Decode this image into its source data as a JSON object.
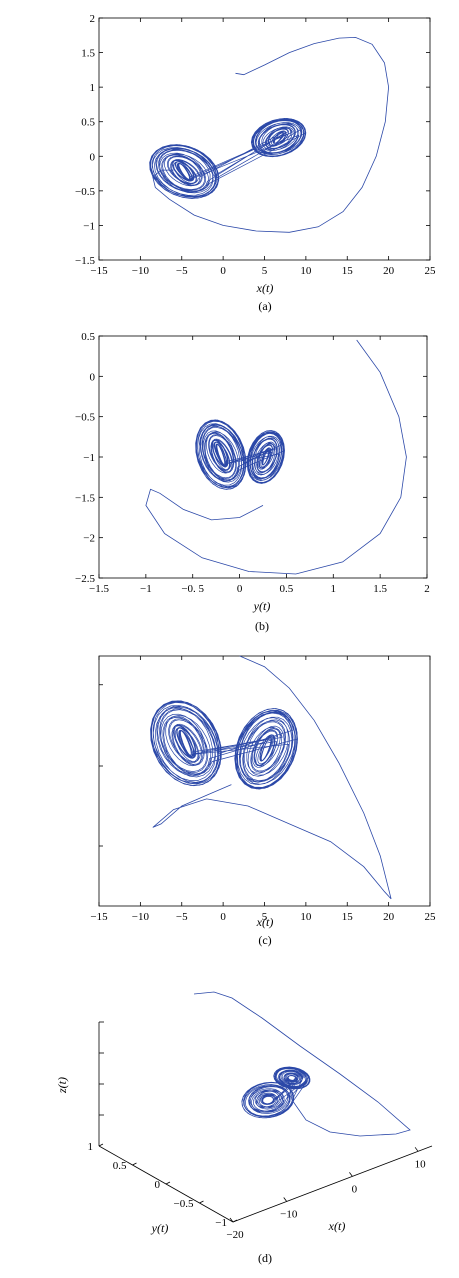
{
  "chart_data": [
    {
      "type": "line",
      "panel": "a",
      "caption": "(a)",
      "xlabel": "x(t)",
      "ylabel": "",
      "xlim": [
        -15,
        25
      ],
      "ylim": [
        -1.5,
        2
      ],
      "xticks": [
        -15,
        -10,
        -5,
        0,
        5,
        10,
        15,
        20,
        25
      ],
      "xtick_labels": [
        "−15",
        "−10",
        "−5",
        "0",
        "5",
        "10",
        "15",
        "20",
        "25"
      ],
      "yticks": [
        -1.5,
        -1,
        -0.5,
        0,
        0.5,
        1,
        1.5,
        2
      ],
      "ytick_labels": [
        "−1.5",
        "−1",
        "−0.5",
        "0",
        "0.5",
        "1",
        "1.5",
        "2"
      ],
      "grid": false,
      "color": "#2b48a8",
      "transient": [
        [
          1.5,
          1.2
        ],
        [
          2.5,
          1.18
        ],
        [
          5,
          1.32
        ],
        [
          8,
          1.5
        ],
        [
          11,
          1.63
        ],
        [
          14,
          1.71
        ],
        [
          16,
          1.72
        ],
        [
          18,
          1.62
        ],
        [
          19.5,
          1.35
        ],
        [
          20,
          1.0
        ],
        [
          19.6,
          0.5
        ],
        [
          18.5,
          0.0
        ],
        [
          16.8,
          -0.45
        ],
        [
          14.5,
          -0.8
        ],
        [
          11.5,
          -1.02
        ],
        [
          8,
          -1.1
        ],
        [
          4,
          -1.08
        ],
        [
          0,
          -1.0
        ],
        [
          -3.5,
          -0.85
        ],
        [
          -6.5,
          -0.62
        ],
        [
          -8.2,
          -0.45
        ],
        [
          -8.5,
          -0.3
        ],
        [
          -7.5,
          -0.2
        ],
        [
          -6,
          -0.2
        ]
      ],
      "attractor": {
        "type": "double-scroll",
        "left_center": [
          -4.7,
          -0.22
        ],
        "right_center": [
          6.7,
          0.27
        ],
        "left_radius": [
          4.2,
          0.38
        ],
        "right_radius": [
          3.3,
          0.27
        ],
        "tilt_deg": 0
      }
    },
    {
      "type": "line",
      "panel": "b",
      "caption": "(b)",
      "xlabel": "y(t)",
      "ylabel": "",
      "xlim": [
        -1.5,
        2
      ],
      "ylim": [
        -2.5,
        0.5
      ],
      "xticks": [
        -1.5,
        -1,
        -0.5,
        0,
        0.5,
        1,
        1.5,
        2
      ],
      "xtick_labels": [
        "−1.5",
        "−1",
        "−0. 5",
        "0",
        "0.5",
        "1",
        "1.5",
        "2"
      ],
      "yticks": [
        -2.5,
        -2,
        -1.5,
        -1,
        -0.5,
        0,
        0.5
      ],
      "ytick_labels": [
        "−2.5",
        "−2",
        "−1.5",
        "−1",
        "−0.5",
        "0",
        "0.5"
      ],
      "grid": false,
      "color": "#2b48a8",
      "transient": [
        [
          1.25,
          0.45
        ],
        [
          1.5,
          0.05
        ],
        [
          1.7,
          -0.5
        ],
        [
          1.78,
          -1.0
        ],
        [
          1.72,
          -1.5
        ],
        [
          1.5,
          -1.95
        ],
        [
          1.1,
          -2.3
        ],
        [
          0.6,
          -2.45
        ],
        [
          0.1,
          -2.42
        ],
        [
          -0.4,
          -2.25
        ],
        [
          -0.8,
          -1.95
        ],
        [
          -1.0,
          -1.6
        ],
        [
          -0.95,
          -1.4
        ],
        [
          -0.85,
          -1.45
        ],
        [
          -0.6,
          -1.65
        ],
        [
          -0.3,
          -1.78
        ],
        [
          0.0,
          -1.75
        ],
        [
          0.25,
          -1.6
        ]
      ],
      "attractor": {
        "type": "double-scroll",
        "left_center": [
          -0.2,
          -0.97
        ],
        "right_center": [
          0.28,
          -1.0
        ],
        "left_radius": [
          0.27,
          0.42
        ],
        "right_radius": [
          0.2,
          0.32
        ],
        "tilt_deg": 0
      }
    },
    {
      "type": "line",
      "panel": "c",
      "caption": "(c)",
      "xlabel": "x(t)",
      "ylabel": "",
      "xlim": [
        -15,
        25
      ],
      "ylim": [
        -1.5,
        2
      ],
      "xticks": [
        -15,
        -10,
        -5,
        0,
        5,
        10,
        15,
        20,
        25
      ],
      "xtick_labels": [
        "−15",
        "−10",
        "−5",
        "0",
        "5",
        "10",
        "15",
        "20",
        "25"
      ],
      "yticks": [],
      "ytick_labels": [],
      "grid": false,
      "color": "#2b48a8",
      "transient": [
        [
          2,
          2.0
        ],
        [
          5,
          1.85
        ],
        [
          8,
          1.55
        ],
        [
          11,
          1.1
        ],
        [
          14,
          0.5
        ],
        [
          17,
          -0.2
        ],
        [
          19,
          -0.8
        ],
        [
          20.3,
          -1.4
        ],
        [
          19.5,
          -1.3
        ],
        [
          17,
          -0.95
        ],
        [
          13,
          -0.6
        ],
        [
          8,
          -0.35
        ],
        [
          3,
          -0.1
        ],
        [
          -2,
          0.0
        ],
        [
          -6,
          -0.15
        ],
        [
          -8.5,
          -0.4
        ],
        [
          -7.5,
          -0.35
        ],
        [
          -5,
          -0.1
        ],
        [
          -2,
          0.05
        ],
        [
          1,
          0.2
        ]
      ],
      "attractor": {
        "type": "double-scroll",
        "left_center": [
          -4.5,
          0.78
        ],
        "right_center": [
          5.2,
          0.7
        ],
        "left_radius": [
          4.3,
          0.58
        ],
        "right_radius": [
          3.8,
          0.55
        ],
        "tilt_deg": 0
      }
    },
    {
      "type": "line",
      "panel": "d",
      "caption": "(d)",
      "xlabel": "x(t)",
      "ylabel": "y(t)",
      "zlabel": "z(t)",
      "projection": "3d",
      "xticks": [
        -20,
        -10,
        0,
        10
      ],
      "xtick_labels": [
        "−20",
        "−10",
        "0",
        "10"
      ],
      "yticks": [
        1,
        0.5,
        0,
        -0.5,
        -1
      ],
      "ytick_labels": [
        "1",
        "0.5",
        "0",
        "−0.5",
        "−1"
      ],
      "zticks": [],
      "ztick_labels": [],
      "grid": false,
      "color": "#2b48a8",
      "transient_screen": [],
      "attractor": {
        "type": "double-scroll-3d"
      }
    }
  ]
}
